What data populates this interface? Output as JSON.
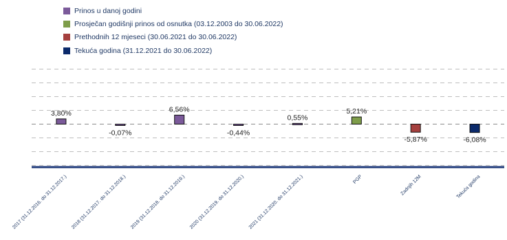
{
  "chart_data": {
    "type": "bar",
    "legend": [
      {
        "label": "Prinos u danoj godini",
        "color": "#7b5a9a"
      },
      {
        "label": "Prosječan godišnji prinos od osnutka (03.12.2003 do 30.06.2022)",
        "color": "#7e9d4a"
      },
      {
        "label": "Prethodnih 12 mjeseci (30.06.2021 do 30.06.2022)",
        "color": "#a5403e"
      },
      {
        "label": "Tekuća godina (31.12.2021 do 30.06.2022)",
        "color": "#0b2a6b"
      }
    ],
    "categories": [
      "2017 (31.12.2016. do 31.12.2017.)",
      "2018 (31.12.2017. do 31.12.2018.)",
      "2019 (31.12.2018. do 31.12.2019.)",
      "2020 (31.12.2019. do 31.12.2020.)",
      "2021 (31.12.2020. do 31.12.2021.)",
      "PGP",
      "Zadnjih 12M",
      "Tekuća godina"
    ],
    "values": [
      3.8,
      -0.07,
      6.56,
      -0.44,
      0.55,
      5.21,
      -5.87,
      -6.08
    ],
    "value_labels": [
      "3,80%",
      "-0,07%",
      "6,56%",
      "-0,44%",
      "0,55%",
      "5,21%",
      "-5,87%",
      "-6,08%"
    ],
    "series_index": [
      0,
      0,
      0,
      0,
      0,
      1,
      2,
      3
    ],
    "ylim": [
      -30,
      40
    ],
    "grid": true,
    "legend_position": "top-left"
  }
}
